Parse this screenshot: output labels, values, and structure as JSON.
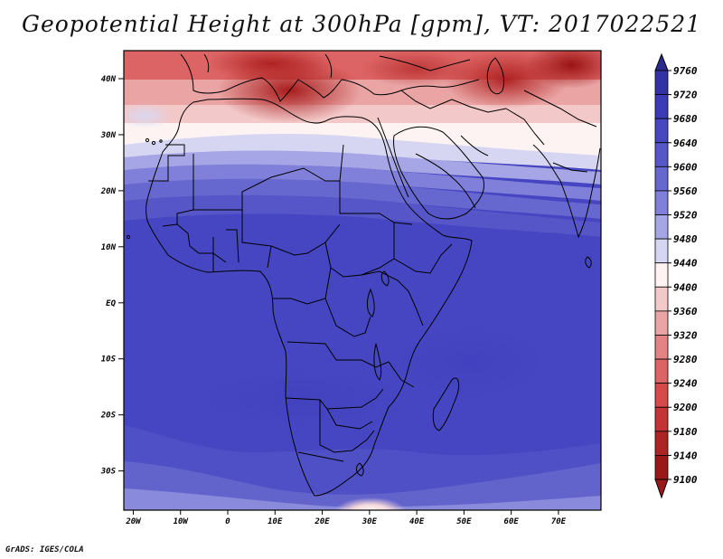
{
  "title": "Geopotential Height at 300hPa [gpm], VT: 2017022521",
  "footer": "GrADS: IGES/COLA",
  "map": {
    "lon_range": [
      -22,
      79
    ],
    "lat_range": [
      -37,
      45
    ],
    "lat_ticks": [
      {
        "value": 40,
        "label": "40N"
      },
      {
        "value": 30,
        "label": "30N"
      },
      {
        "value": 20,
        "label": "20N"
      },
      {
        "value": 10,
        "label": "10N"
      },
      {
        "value": 0,
        "label": "EQ"
      },
      {
        "value": -10,
        "label": "10S"
      },
      {
        "value": -20,
        "label": "20S"
      },
      {
        "value": -30,
        "label": "30S"
      }
    ],
    "lon_ticks": [
      {
        "value": -20,
        "label": "20W"
      },
      {
        "value": -10,
        "label": "10W"
      },
      {
        "value": 0,
        "label": "0"
      },
      {
        "value": 10,
        "label": "10E"
      },
      {
        "value": 20,
        "label": "20E"
      },
      {
        "value": 30,
        "label": "30E"
      },
      {
        "value": 40,
        "label": "40E"
      },
      {
        "value": 50,
        "label": "50E"
      },
      {
        "value": 60,
        "label": "60E"
      },
      {
        "value": 70,
        "label": "70E"
      }
    ]
  },
  "colorbar": {
    "levels": [
      "9760",
      "9720",
      "9680",
      "9640",
      "9600",
      "9560",
      "9520",
      "9480",
      "9440",
      "9400",
      "9360",
      "9320",
      "9280",
      "9240",
      "9200",
      "9180",
      "9140",
      "9100"
    ],
    "colors": [
      "#2a2a8e",
      "#3232a6",
      "#3b3bb8",
      "#4747c2",
      "#5656c8",
      "#6767d0",
      "#8080da",
      "#a6a6e6",
      "#d6d6f3",
      "#fdf3f3",
      "#f3c8c8",
      "#eaa4a4",
      "#e38383",
      "#dd6464",
      "#d64a4a",
      "#c53434",
      "#ad2424",
      "#9a1818"
    ]
  }
}
